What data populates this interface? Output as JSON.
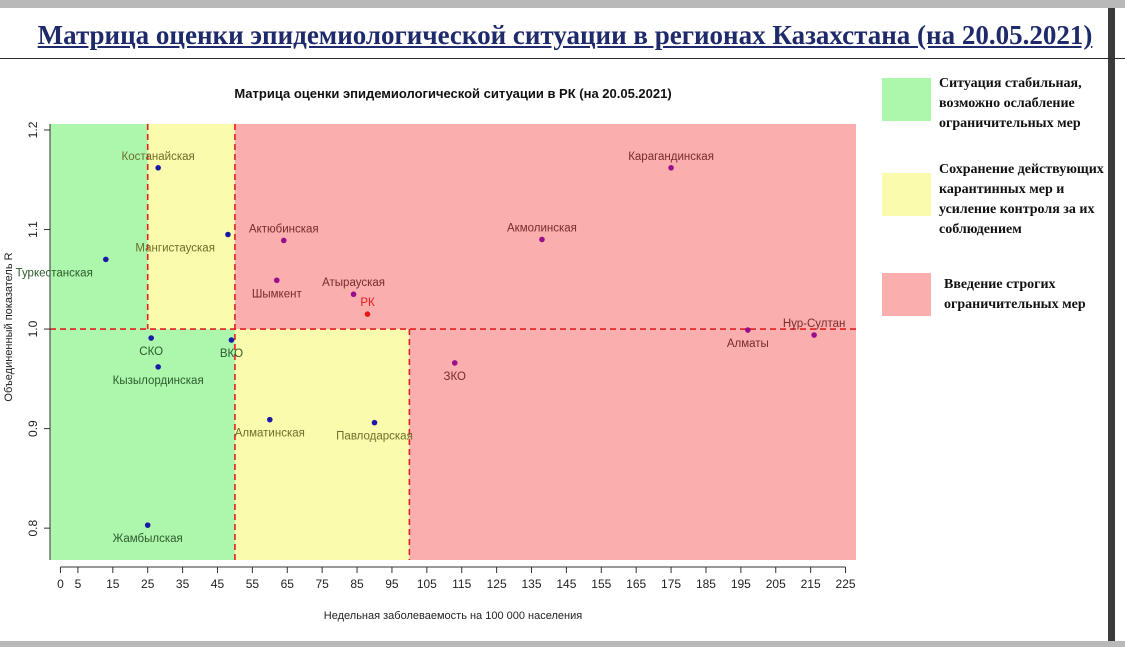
{
  "slide": {
    "title": "Матрица оценки эпидемиологической ситуации в регионах Казахстана (на 20.05.2021)"
  },
  "legend": [
    {
      "text": "Ситуация стабильная, возможно ослабление ограничительных мер",
      "color": "#adf7ad"
    },
    {
      "text": "Сохранение действующих карантинных мер и усиление контроля за их соблюдением",
      "color": "#fbfbad"
    },
    {
      "text": "Введение строгих ограничительных мер",
      "color": "#fbaeae"
    }
  ],
  "chart_data": {
    "type": "scatter",
    "title": "Матрица оценки эпидемиологической ситуации в РК (на 20.05.2021)",
    "xlabel": "Недельная заболеваемость на 100 000 населения",
    "ylabel": "Объединенный показатель R",
    "xlim": [
      -3,
      228
    ],
    "ylim": [
      0.768,
      1.206
    ],
    "x_ticks": [
      0,
      5,
      15,
      25,
      35,
      45,
      55,
      65,
      75,
      85,
      95,
      105,
      115,
      125,
      135,
      145,
      155,
      165,
      175,
      185,
      195,
      205,
      215,
      225
    ],
    "y_ticks": [
      0.8,
      0.9,
      1.0,
      1.1,
      1.2
    ],
    "zones": [
      {
        "x": [
          -3,
          25
        ],
        "y": [
          1.0,
          1.206
        ],
        "color": "#adf7ad"
      },
      {
        "x": [
          25,
          50
        ],
        "y": [
          1.0,
          1.206
        ],
        "color": "#fbfbad"
      },
      {
        "x": [
          50,
          228
        ],
        "y": [
          1.0,
          1.206
        ],
        "color": "#fbaeae"
      },
      {
        "x": [
          -3,
          50
        ],
        "y": [
          0.768,
          1.0
        ],
        "color": "#adf7ad"
      },
      {
        "x": [
          50,
          100
        ],
        "y": [
          0.768,
          1.0
        ],
        "color": "#fbfbad"
      },
      {
        "x": [
          100,
          228
        ],
        "y": [
          0.768,
          1.0
        ],
        "color": "#fbaeae"
      }
    ],
    "thresholds": [
      {
        "axis": "x",
        "value": 25,
        "from": 1.0,
        "to": 1.206
      },
      {
        "axis": "x",
        "value": 50,
        "from": 0.768,
        "to": 1.206
      },
      {
        "axis": "x",
        "value": 100,
        "from": 0.768,
        "to": 1.0
      },
      {
        "axis": "y",
        "value": 1.0,
        "from": -3,
        "to": 228
      }
    ],
    "points": [
      {
        "label": "Костанайская",
        "x": 28,
        "y": 1.162,
        "color": "#1a1aa8",
        "label_color": "#6e6e2a",
        "label_pos": "above"
      },
      {
        "label": "Карагандинская",
        "x": 175,
        "y": 1.162,
        "color": "#9a0d8c",
        "label_color": "#7a2a2a",
        "label_pos": "above"
      },
      {
        "label": "Мангистауская",
        "x": 48,
        "y": 1.095,
        "color": "#1a1aa8",
        "label_color": "#6e6e2a",
        "label_pos": "below-left"
      },
      {
        "label": "Актюбинская",
        "x": 64,
        "y": 1.089,
        "color": "#9a0d8c",
        "label_color": "#7a2a2a",
        "label_pos": "above"
      },
      {
        "label": "Акмолинская",
        "x": 138,
        "y": 1.09,
        "color": "#9a0d8c",
        "label_color": "#7a2a2a",
        "label_pos": "above"
      },
      {
        "label": "Туркестанская",
        "x": 13,
        "y": 1.07,
        "color": "#1a1aa8",
        "label_color": "#2d5a2d",
        "label_pos": "below-left"
      },
      {
        "label": "Шымкент",
        "x": 62,
        "y": 1.049,
        "color": "#9a0d8c",
        "label_color": "#7a2a2a",
        "label_pos": "below"
      },
      {
        "label": "Атырауская",
        "x": 84,
        "y": 1.035,
        "color": "#9a0d8c",
        "label_color": "#7a2a2a",
        "label_pos": "above"
      },
      {
        "label": "РК",
        "x": 88,
        "y": 1.015,
        "color": "#e81818",
        "label_color": "#e81818",
        "label_pos": "above"
      },
      {
        "label": "Алматы",
        "x": 197,
        "y": 0.999,
        "color": "#9a0d8c",
        "label_color": "#7a2a2a",
        "label_pos": "below"
      },
      {
        "label": "Нур-Султан",
        "x": 216,
        "y": 0.994,
        "color": "#9a0d8c",
        "label_color": "#7a2a2a",
        "label_pos": "above"
      },
      {
        "label": "СКО",
        "x": 26,
        "y": 0.991,
        "color": "#1a1aa8",
        "label_color": "#2d5a2d",
        "label_pos": "below"
      },
      {
        "label": "ВКО",
        "x": 49,
        "y": 0.989,
        "color": "#1a1aa8",
        "label_color": "#2d5a2d",
        "label_pos": "below"
      },
      {
        "label": "ЗКО",
        "x": 113,
        "y": 0.966,
        "color": "#9a0d8c",
        "label_color": "#7a2a2a",
        "label_pos": "below"
      },
      {
        "label": "Кызылординская",
        "x": 28,
        "y": 0.962,
        "color": "#1a1aa8",
        "label_color": "#2d5a2d",
        "label_pos": "below"
      },
      {
        "label": "Алматинская",
        "x": 60,
        "y": 0.909,
        "color": "#1a1aa8",
        "label_color": "#6e6e2a",
        "label_pos": "below"
      },
      {
        "label": "Павлодарская",
        "x": 90,
        "y": 0.906,
        "color": "#1a1aa8",
        "label_color": "#6e6e2a",
        "label_pos": "below"
      },
      {
        "label": "Жамбылская",
        "x": 25,
        "y": 0.803,
        "color": "#1a1aa8",
        "label_color": "#2d5a2d",
        "label_pos": "below"
      }
    ]
  }
}
